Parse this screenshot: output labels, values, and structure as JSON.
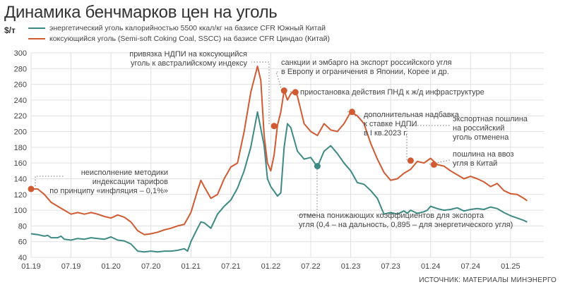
{
  "title": "Динамика бенчмарков цен на уголь",
  "unit": "$/т",
  "source": "ИСТОЧНИК: МАТЕРИАЛЫ МИНЭНЕРГО",
  "colors": {
    "energy": "#3d8a84",
    "coking": "#d05a32",
    "grid": "#e0e0e0",
    "text": "#444444"
  },
  "chart_data": {
    "type": "line",
    "ylim": [
      40,
      300
    ],
    "yticks": [
      40,
      60,
      80,
      100,
      120,
      140,
      160,
      180,
      200,
      220,
      240,
      260,
      280,
      300
    ],
    "xlim": [
      0,
      77
    ],
    "xticks": [
      {
        "x": 0,
        "label": "01.19"
      },
      {
        "x": 6,
        "label": "07.19"
      },
      {
        "x": 12,
        "label": "01.20"
      },
      {
        "x": 18,
        "label": "07.20"
      },
      {
        "x": 24,
        "label": "01.21"
      },
      {
        "x": 30,
        "label": "07.21"
      },
      {
        "x": 36,
        "label": "01.22"
      },
      {
        "x": 42,
        "label": "07.22"
      },
      {
        "x": 48,
        "label": "01.23"
      },
      {
        "x": 54,
        "label": "07.23"
      },
      {
        "x": 60,
        "label": "01.24"
      },
      {
        "x": 66,
        "label": "07.24"
      },
      {
        "x": 72,
        "label": "01.25"
      }
    ],
    "grid": true,
    "series": [
      {
        "name": "энергетический уголь калорийностью 5500 ккал/кг на базисе CFR Южный Китай",
        "points": [
          [
            0,
            70
          ],
          [
            1,
            69
          ],
          [
            2,
            67
          ],
          [
            2.5,
            68
          ],
          [
            3,
            65
          ],
          [
            4,
            65
          ],
          [
            4.5,
            67
          ],
          [
            5,
            63
          ],
          [
            6,
            62
          ],
          [
            7,
            64
          ],
          [
            8,
            63
          ],
          [
            9,
            65
          ],
          [
            10,
            64
          ],
          [
            11,
            63
          ],
          [
            12,
            66
          ],
          [
            13,
            62
          ],
          [
            14,
            61
          ],
          [
            15,
            57
          ],
          [
            16,
            48
          ],
          [
            17,
            47
          ],
          [
            18,
            48
          ],
          [
            19,
            47
          ],
          [
            20,
            48
          ],
          [
            21,
            48
          ],
          [
            22,
            49
          ],
          [
            23,
            51
          ],
          [
            23.5,
            48
          ],
          [
            24,
            60
          ],
          [
            25,
            77
          ],
          [
            25.5,
            85
          ],
          [
            26,
            84
          ],
          [
            27,
            77
          ],
          [
            28,
            95
          ],
          [
            29,
            105
          ],
          [
            30,
            113
          ],
          [
            31,
            128
          ],
          [
            32,
            150
          ],
          [
            33,
            180
          ],
          [
            34,
            225
          ],
          [
            35,
            182
          ],
          [
            35.5,
            140
          ],
          [
            36,
            130
          ],
          [
            37,
            118
          ],
          [
            37.5,
            122
          ],
          [
            38,
            180
          ],
          [
            38.5,
            210
          ],
          [
            39,
            205
          ],
          [
            40,
            175
          ],
          [
            41,
            165
          ],
          [
            42,
            167
          ],
          [
            43,
            155
          ],
          [
            44,
            175
          ],
          [
            45,
            182
          ],
          [
            46,
            172
          ],
          [
            47,
            160
          ],
          [
            48,
            150
          ],
          [
            49,
            135
          ],
          [
            50,
            133
          ],
          [
            51,
            125
          ],
          [
            52,
            115
          ],
          [
            53,
            95
          ],
          [
            54,
            97
          ],
          [
            55,
            95
          ],
          [
            56,
            99
          ],
          [
            56.5,
            96
          ],
          [
            57,
            100
          ],
          [
            58,
            96
          ],
          [
            59,
            98
          ],
          [
            59.5,
            100
          ],
          [
            60,
            105
          ],
          [
            61,
            102
          ],
          [
            62,
            100
          ],
          [
            63,
            101
          ],
          [
            64,
            103
          ],
          [
            65,
            99
          ],
          [
            66,
            101
          ],
          [
            67,
            102
          ],
          [
            68,
            101
          ],
          [
            69,
            104
          ],
          [
            70,
            102
          ],
          [
            71,
            97
          ],
          [
            72,
            93
          ],
          [
            73,
            90
          ],
          [
            74,
            87
          ],
          [
            74.5,
            85
          ]
        ]
      },
      {
        "name": "коксующийся уголь (Semi-soft Coking Coal, SSCC) на базисе CFR Циндао (Китай)",
        "points": [
          [
            0,
            127
          ],
          [
            1,
            127
          ],
          [
            2,
            120
          ],
          [
            3,
            110
          ],
          [
            4,
            105
          ],
          [
            5,
            100
          ],
          [
            6,
            95
          ],
          [
            7,
            97
          ],
          [
            8,
            95
          ],
          [
            9,
            97
          ],
          [
            10,
            95
          ],
          [
            11,
            92
          ],
          [
            12,
            90
          ],
          [
            13,
            94
          ],
          [
            14,
            91
          ],
          [
            15,
            85
          ],
          [
            16,
            74
          ],
          [
            17,
            69
          ],
          [
            18,
            70
          ],
          [
            19,
            72
          ],
          [
            20,
            75
          ],
          [
            21,
            77
          ],
          [
            22,
            80
          ],
          [
            23,
            82
          ],
          [
            24,
            97
          ],
          [
            25,
            125
          ],
          [
            25.5,
            138
          ],
          [
            26,
            130
          ],
          [
            27,
            115
          ],
          [
            28,
            120
          ],
          [
            29,
            140
          ],
          [
            30,
            155
          ],
          [
            31,
            160
          ],
          [
            32,
            200
          ],
          [
            33,
            250
          ],
          [
            34,
            283
          ],
          [
            34.5,
            265
          ],
          [
            35,
            195
          ],
          [
            35.5,
            160
          ],
          [
            36,
            150
          ],
          [
            36.5,
            170
          ],
          [
            37,
            208
          ],
          [
            37.5,
            225
          ],
          [
            38,
            252
          ],
          [
            38.5,
            240
          ],
          [
            39,
            248
          ],
          [
            39.5,
            252
          ],
          [
            40,
            245
          ],
          [
            41,
            210
          ],
          [
            42,
            200
          ],
          [
            43,
            195
          ],
          [
            44,
            210
          ],
          [
            45,
            202
          ],
          [
            46,
            200
          ],
          [
            47,
            210
          ],
          [
            48,
            225
          ],
          [
            49,
            220
          ],
          [
            50,
            210
          ],
          [
            51,
            185
          ],
          [
            52,
            165
          ],
          [
            53,
            148
          ],
          [
            54,
            138
          ],
          [
            55,
            140
          ],
          [
            56,
            147
          ],
          [
            57,
            152
          ],
          [
            58,
            162
          ],
          [
            59,
            160
          ],
          [
            60,
            166
          ],
          [
            61,
            158
          ],
          [
            62,
            156
          ],
          [
            63,
            150
          ],
          [
            64,
            145
          ],
          [
            65,
            140
          ],
          [
            66,
            143
          ],
          [
            67,
            140
          ],
          [
            68,
            136
          ],
          [
            69,
            130
          ],
          [
            70,
            134
          ],
          [
            71,
            125
          ],
          [
            72,
            121
          ],
          [
            73,
            120
          ],
          [
            74,
            115
          ],
          [
            74.5,
            112
          ]
        ]
      }
    ],
    "markers": [
      {
        "series": 1,
        "x": 0,
        "y": 127
      },
      {
        "series": 1,
        "x": 36.5,
        "y": 207
      },
      {
        "series": 1,
        "x": 38,
        "y": 252
      },
      {
        "series": 1,
        "x": 39.7,
        "y": 250
      },
      {
        "series": 1,
        "x": 48.2,
        "y": 225
      },
      {
        "series": 1,
        "x": 57,
        "y": 163
      },
      {
        "series": 1,
        "x": 60.5,
        "y": 158
      },
      {
        "series": 0,
        "x": 43,
        "y": 156
      }
    ]
  },
  "annotations": [
    {
      "lines": [
        "неисполнение методики",
        "индексации тарифов",
        "по принципу «инфляция – 0,1%»"
      ],
      "align": "end"
    },
    {
      "lines": [
        "привязка НДПИ на коксующийся",
        "уголь к австралийскому индексу"
      ],
      "align": "end"
    },
    {
      "lines": [
        "санкции и эмбарго на экспорт российского угля",
        "в Европу и ограничения в Японии, Корее и др."
      ],
      "align": "start"
    },
    {
      "lines": [
        "приостановка действия ПНД к ж/д инфраструктуре"
      ],
      "align": "start"
    },
    {
      "lines": [
        "дополнительная надбавка",
        "к ставке НДПИ",
        "в I кв.2023 г."
      ],
      "align": "start"
    },
    {
      "lines": [
        "экспортная пошлина",
        "на российский",
        "уголь отменена"
      ],
      "align": "start"
    },
    {
      "lines": [
        "пошлина на ввоз",
        "угля в Китай"
      ],
      "align": "start"
    },
    {
      "lines": [
        "отмена понижающих коэффициентов для экспорта",
        "угля (0,4 – на дальность, 0,895 – для энергетического угля)"
      ],
      "align": "start"
    }
  ]
}
